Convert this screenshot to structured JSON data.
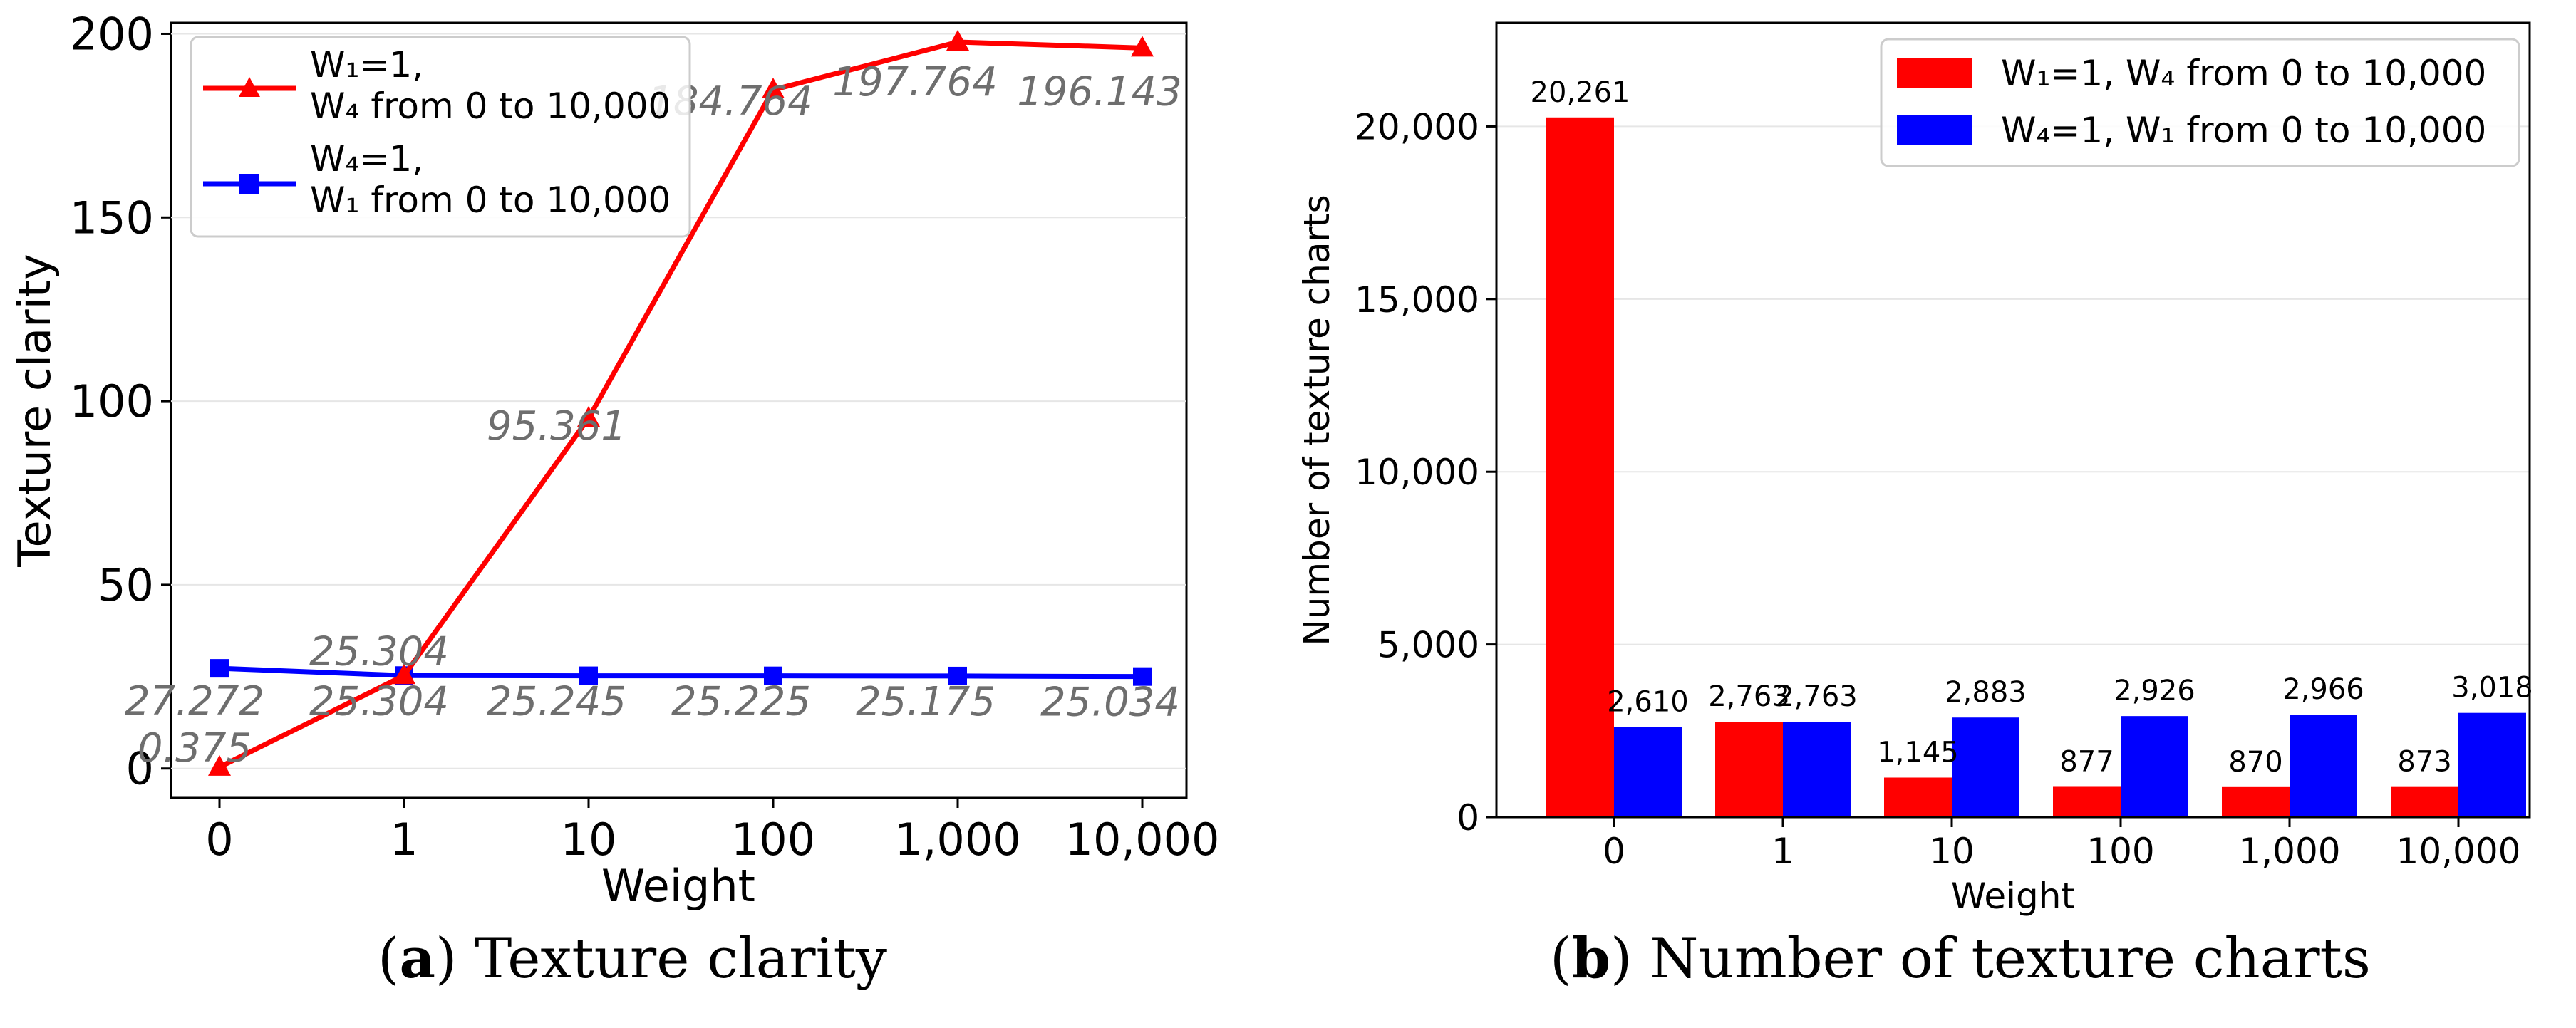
{
  "panels": {
    "a": {
      "caption_letter": "a",
      "caption_text": "Texture clarity"
    },
    "b": {
      "caption_letter": "b",
      "caption_text": "Number of texture charts"
    }
  },
  "chart_data": [
    {
      "type": "line",
      "title": "",
      "xlabel": "Weight",
      "ylabel": "Texture clarity",
      "categories": [
        "0",
        "1",
        "10",
        "100",
        "1,000",
        "10,000"
      ],
      "yticks": [
        "0",
        "50",
        "100",
        "150",
        "200"
      ],
      "ylim": [
        -8,
        203
      ],
      "grid": "horizontal",
      "legend_position": "upper-left",
      "series": [
        {
          "legend_line1": "W₁=1,",
          "legend_line2": "W₄ from 0 to 10,000",
          "color": "#ff0000",
          "marker": "triangle",
          "values": [
            0.375,
            25.304,
            95.361,
            184.764,
            197.764,
            196.143
          ],
          "labels": [
            "0.375",
            "25.304",
            "95.361",
            "184.764",
            "197.764",
            "196.143"
          ]
        },
        {
          "legend_line1": "W₄=1,",
          "legend_line2": "W₁ from 0 to 10,000",
          "color": "#0000ff",
          "marker": "square",
          "values": [
            27.272,
            25.304,
            25.245,
            25.225,
            25.175,
            25.034
          ],
          "labels": [
            "27.272",
            "25.304",
            "25.245",
            "25.225",
            "25.175",
            "25.034"
          ]
        }
      ]
    },
    {
      "type": "bar",
      "title": "",
      "xlabel": "Weight",
      "ylabel": "Number of texture charts",
      "categories": [
        "0",
        "1",
        "10",
        "100",
        "1,000",
        "10,000"
      ],
      "yticks": [
        "0",
        "5,000",
        "10,000",
        "15,000",
        "20,000"
      ],
      "ylim": [
        0,
        23000
      ],
      "grid": "horizontal",
      "legend_position": "upper-right",
      "series": [
        {
          "name": "W₁=1, W₄ from 0 to 10,000",
          "color": "#ff0000",
          "values": [
            20261,
            2763,
            1145,
            877,
            870,
            873
          ],
          "labels": [
            "20,261",
            "2,763",
            "1,145",
            "877",
            "870",
            "873"
          ]
        },
        {
          "name": "W₄=1, W₁ from 0 to 10,000",
          "color": "#0000ff",
          "values": [
            2610,
            2763,
            2883,
            2926,
            2966,
            3018
          ],
          "labels": [
            "2,610",
            "2,763",
            "2,883",
            "2,926",
            "2,966",
            "3,018"
          ]
        }
      ]
    }
  ]
}
